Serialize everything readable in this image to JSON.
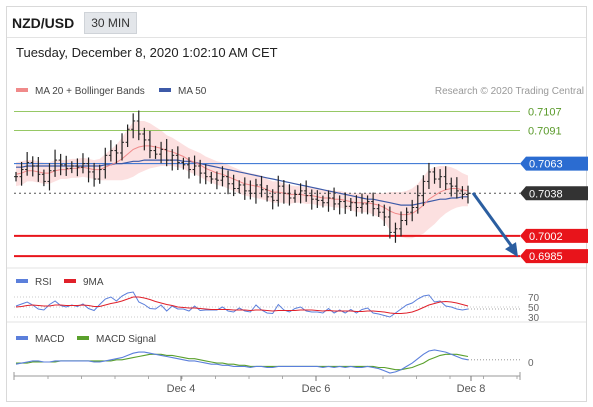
{
  "header": {
    "pair": "NZD/USD",
    "timeframe": "30 MIN"
  },
  "timestamp": "Tuesday, December 8, 2020 1:02:10 AM CET",
  "legend_main": [
    {
      "label": "MA 20 + Bollinger Bands",
      "color": "#f08a8a"
    },
    {
      "label": "MA 50",
      "color": "#3d5aa8"
    }
  ],
  "copyright": "Research © 2020 Trading Central",
  "legend_rsi": [
    {
      "label": "RSI",
      "color": "#5b7fdb"
    },
    {
      "label": "9MA",
      "color": "#e0202a"
    }
  ],
  "legend_macd": [
    {
      "label": "MACD",
      "color": "#5b7fdb"
    },
    {
      "label": "MACD Signal",
      "color": "#5aa02c"
    }
  ],
  "chart_data": {
    "type": "line",
    "title": "NZD/USD",
    "x_tick_labels": [
      "Dec 4",
      "Dec 6",
      "Dec 8"
    ],
    "price_range": [
      0.698,
      0.7115
    ],
    "levels": [
      {
        "label": "0.7107",
        "value": 0.7107,
        "kind": "resistance-green",
        "color": "#7cba3e"
      },
      {
        "label": "0.7091",
        "value": 0.7091,
        "kind": "resistance-green",
        "color": "#7cba3e"
      },
      {
        "label": "0.7063",
        "value": 0.7063,
        "kind": "pivot",
        "color": "#2b6cd1"
      },
      {
        "label": "0.7038",
        "value": 0.7038,
        "kind": "current",
        "color": "#333333"
      },
      {
        "label": "0.7002",
        "value": 0.7002,
        "kind": "support-red",
        "color": "#e8141b"
      },
      {
        "label": "0.6985",
        "value": 0.6985,
        "kind": "support-red",
        "color": "#e8141b"
      }
    ],
    "arrow": {
      "from_price": 0.704,
      "to_price": 0.6985,
      "color": "#2b5ea0"
    },
    "close_series": [
      0.7052,
      0.7058,
      0.7064,
      0.7061,
      0.7054,
      0.7048,
      0.7057,
      0.7066,
      0.7062,
      0.7059,
      0.7061,
      0.706,
      0.7063,
      0.7056,
      0.705,
      0.7058,
      0.707,
      0.7074,
      0.7072,
      0.7081,
      0.7092,
      0.7099,
      0.7088,
      0.7083,
      0.7074,
      0.7071,
      0.7075,
      0.7066,
      0.707,
      0.7064,
      0.7062,
      0.7058,
      0.7061,
      0.7055,
      0.7052,
      0.705,
      0.7049,
      0.7052,
      0.7046,
      0.7042,
      0.7045,
      0.704,
      0.7038,
      0.7045,
      0.7041,
      0.7035,
      0.7032,
      0.7044,
      0.7038,
      0.7034,
      0.7037,
      0.704,
      0.7036,
      0.7033,
      0.7032,
      0.703,
      0.7034,
      0.7029,
      0.7031,
      0.7027,
      0.703,
      0.7026,
      0.7029,
      0.7031,
      0.7025,
      0.7022,
      0.7018,
      0.7005,
      0.7008,
      0.7015,
      0.7022,
      0.7026,
      0.7036,
      0.7048,
      0.7056,
      0.705,
      0.7052,
      0.7046,
      0.7044,
      0.704,
      0.7037,
      0.7038
    ],
    "ma20_series": [
      0.7054,
      0.7055,
      0.7057,
      0.7057,
      0.7056,
      0.7055,
      0.7055,
      0.7057,
      0.7058,
      0.7058,
      0.7059,
      0.7059,
      0.706,
      0.7059,
      0.7058,
      0.7058,
      0.706,
      0.7062,
      0.7064,
      0.7067,
      0.7071,
      0.7075,
      0.7077,
      0.7078,
      0.7078,
      0.7077,
      0.7076,
      0.7074,
      0.7073,
      0.7071,
      0.7069,
      0.7066,
      0.7064,
      0.7062,
      0.7059,
      0.7057,
      0.7055,
      0.7054,
      0.7052,
      0.705,
      0.7048,
      0.7046,
      0.7045,
      0.7044,
      0.7043,
      0.7041,
      0.7039,
      0.7039,
      0.7038,
      0.7037,
      0.7037,
      0.7037,
      0.7036,
      0.7036,
      0.7035,
      0.7034,
      0.7034,
      0.7033,
      0.7033,
      0.7032,
      0.7031,
      0.703,
      0.703,
      0.703,
      0.7029,
      0.7028,
      0.7026,
      0.7023,
      0.7021,
      0.702,
      0.702,
      0.7021,
      0.7024,
      0.7028,
      0.7033,
      0.7036,
      0.7039,
      0.7041,
      0.7042,
      0.7042,
      0.7041,
      0.704
    ],
    "bb_halfwidth_series": [
      0.001,
      0.001,
      0.0009,
      0.0009,
      0.0009,
      0.0009,
      0.0009,
      0.0009,
      0.0008,
      0.0008,
      0.0008,
      0.0008,
      0.0008,
      0.0008,
      0.0008,
      0.0009,
      0.0011,
      0.0013,
      0.0015,
      0.0018,
      0.0021,
      0.0023,
      0.0022,
      0.0021,
      0.0019,
      0.0017,
      0.0015,
      0.0013,
      0.0012,
      0.0011,
      0.001,
      0.001,
      0.001,
      0.001,
      0.001,
      0.001,
      0.001,
      0.001,
      0.001,
      0.001,
      0.001,
      0.001,
      0.001,
      0.001,
      0.001,
      0.0009,
      0.0009,
      0.0009,
      0.0008,
      0.0008,
      0.0007,
      0.0007,
      0.0007,
      0.0007,
      0.0007,
      0.0007,
      0.0007,
      0.0007,
      0.0007,
      0.0007,
      0.0007,
      0.0008,
      0.0008,
      0.0008,
      0.0009,
      0.001,
      0.0012,
      0.0016,
      0.0018,
      0.0019,
      0.002,
      0.0021,
      0.0022,
      0.0024,
      0.0025,
      0.0024,
      0.0022,
      0.002,
      0.0018,
      0.0016,
      0.0014,
      0.0013
    ],
    "ma50_series": [
      0.706,
      0.706,
      0.7061,
      0.7061,
      0.7061,
      0.7061,
      0.7061,
      0.7061,
      0.7061,
      0.7061,
      0.7061,
      0.7061,
      0.7061,
      0.7061,
      0.7061,
      0.7061,
      0.7062,
      0.7062,
      0.7063,
      0.7063,
      0.7064,
      0.7065,
      0.7065,
      0.7066,
      0.7066,
      0.7066,
      0.7066,
      0.7066,
      0.7066,
      0.7066,
      0.7065,
      0.7065,
      0.7064,
      0.7063,
      0.7062,
      0.7061,
      0.706,
      0.7059,
      0.7058,
      0.7057,
      0.7056,
      0.7055,
      0.7054,
      0.7053,
      0.7052,
      0.7051,
      0.705,
      0.7049,
      0.7048,
      0.7047,
      0.7046,
      0.7045,
      0.7044,
      0.7043,
      0.7042,
      0.7041,
      0.704,
      0.7039,
      0.7038,
      0.7037,
      0.7036,
      0.7035,
      0.7034,
      0.7033,
      0.7033,
      0.7032,
      0.7031,
      0.703,
      0.7029,
      0.7028,
      0.7028,
      0.7028,
      0.7029,
      0.703,
      0.7031,
      0.7032,
      0.7033,
      0.7033,
      0.7034,
      0.7034,
      0.7035,
      0.7035
    ],
    "rsi": {
      "levels": [
        70,
        50,
        30
      ],
      "range": [
        20,
        80
      ],
      "rsi_series": [
        52,
        56,
        60,
        54,
        46,
        44,
        55,
        62,
        53,
        50,
        54,
        51,
        56,
        47,
        43,
        55,
        66,
        70,
        62,
        72,
        78,
        80,
        60,
        55,
        47,
        46,
        54,
        42,
        52,
        46,
        46,
        42,
        52,
        43,
        44,
        44,
        44,
        50,
        42,
        40,
        48,
        42,
        40,
        54,
        44,
        38,
        37,
        55,
        44,
        40,
        47,
        50,
        42,
        40,
        40,
        38,
        47,
        38,
        44,
        38,
        45,
        38,
        45,
        48,
        38,
        36,
        33,
        30,
        38,
        46,
        54,
        58,
        66,
        72,
        74,
        60,
        62,
        52,
        50,
        46,
        44,
        46
      ],
      "ma_series": [
        50,
        51,
        53,
        54,
        53,
        52,
        52,
        54,
        54,
        53,
        53,
        53,
        54,
        53,
        51,
        51,
        54,
        57,
        59,
        62,
        66,
        70,
        70,
        68,
        65,
        61,
        58,
        55,
        53,
        50,
        49,
        48,
        48,
        47,
        46,
        45,
        45,
        45,
        45,
        44,
        44,
        44,
        43,
        44,
        44,
        43,
        42,
        43,
        43,
        43,
        43,
        44,
        44,
        44,
        43,
        42,
        43,
        42,
        42,
        42,
        42,
        41,
        41,
        42,
        42,
        41,
        40,
        38,
        37,
        37,
        38,
        40,
        44,
        49,
        54,
        57,
        60,
        61,
        60,
        58,
        55,
        52
      ]
    },
    "macd": {
      "zero_label": "0",
      "macd_series": [
        -2,
        -1,
        0,
        1,
        1,
        0,
        0,
        1,
        1,
        1,
        1,
        1,
        1,
        1,
        0,
        0,
        1,
        2,
        3,
        4,
        6,
        8,
        9,
        9,
        8,
        7,
        6,
        5,
        4,
        3,
        2,
        1,
        1,
        0,
        -1,
        -2,
        -2,
        -3,
        -3,
        -4,
        -4,
        -4,
        -5,
        -4,
        -4,
        -5,
        -5,
        -4,
        -4,
        -4,
        -4,
        -4,
        -4,
        -4,
        -4,
        -5,
        -4,
        -5,
        -4,
        -5,
        -4,
        -5,
        -5,
        -4,
        -5,
        -6,
        -8,
        -10,
        -9,
        -7,
        -4,
        -1,
        3,
        7,
        10,
        11,
        10,
        9,
        7,
        5,
        3,
        2
      ],
      "signal_series": [
        -1,
        -1,
        -1,
        0,
        0,
        0,
        0,
        0,
        1,
        1,
        1,
        1,
        1,
        1,
        1,
        1,
        1,
        1,
        2,
        2,
        3,
        4,
        5,
        6,
        7,
        7,
        7,
        6,
        6,
        5,
        4,
        3,
        3,
        2,
        1,
        0,
        -1,
        -1,
        -2,
        -2,
        -3,
        -3,
        -4,
        -4,
        -4,
        -4,
        -4,
        -4,
        -4,
        -4,
        -4,
        -4,
        -4,
        -4,
        -4,
        -4,
        -4,
        -4,
        -4,
        -4,
        -4,
        -4,
        -4,
        -4,
        -4,
        -5,
        -5,
        -6,
        -7,
        -7,
        -6,
        -5,
        -3,
        -1,
        2,
        4,
        6,
        7,
        7,
        7,
        6,
        5
      ]
    }
  }
}
